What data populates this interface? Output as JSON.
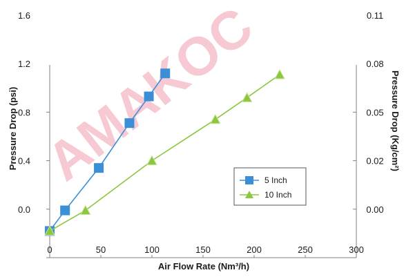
{
  "watermark": "AMAKOC",
  "chart_data": {
    "type": "line",
    "xlabel": "Air Flow Rate (Nm³/h)",
    "ylabel_left": "Pressure Drop (psi)",
    "ylabel_right": "Pressure Drop (Kg/cm²)",
    "xlim": [
      0,
      300
    ],
    "ylim_left": [
      -0.4,
      1.6
    ],
    "x_ticks": [
      0,
      50,
      100,
      150,
      200,
      250,
      300
    ],
    "x_tick_labels": [
      "0",
      "50",
      "100",
      "150",
      "200",
      "250",
      "300"
    ],
    "y_left_ticks": [
      -0.4,
      0.0,
      0.4,
      0.8,
      1.2,
      1.6
    ],
    "y_left_tick_labels": [
      "",
      "0.0",
      "0.4",
      "0.8",
      "1.2",
      "1.6"
    ],
    "y_right_tick_labels": [
      "",
      "0.00",
      "0.02",
      "0.05",
      "0.08",
      "0.11"
    ],
    "grid": false,
    "legend_position": "lower-right",
    "series": [
      {
        "name": "5 Inch",
        "color": "#3b8fd6",
        "marker": "square",
        "points": [
          {
            "x": 0,
            "y": -0.18
          },
          {
            "x": 15,
            "y": -0.01
          },
          {
            "x": 48,
            "y": 0.34
          },
          {
            "x": 78,
            "y": 0.71
          },
          {
            "x": 97,
            "y": 0.93
          },
          {
            "x": 113,
            "y": 1.12
          }
        ]
      },
      {
        "name": "10 Inch",
        "color": "#8dc63f",
        "marker": "triangle",
        "points": [
          {
            "x": 0,
            "y": -0.18
          },
          {
            "x": 35,
            "y": -0.01
          },
          {
            "x": 100,
            "y": 0.4
          },
          {
            "x": 162,
            "y": 0.74
          },
          {
            "x": 193,
            "y": 0.92
          },
          {
            "x": 225,
            "y": 1.11
          }
        ]
      }
    ]
  }
}
